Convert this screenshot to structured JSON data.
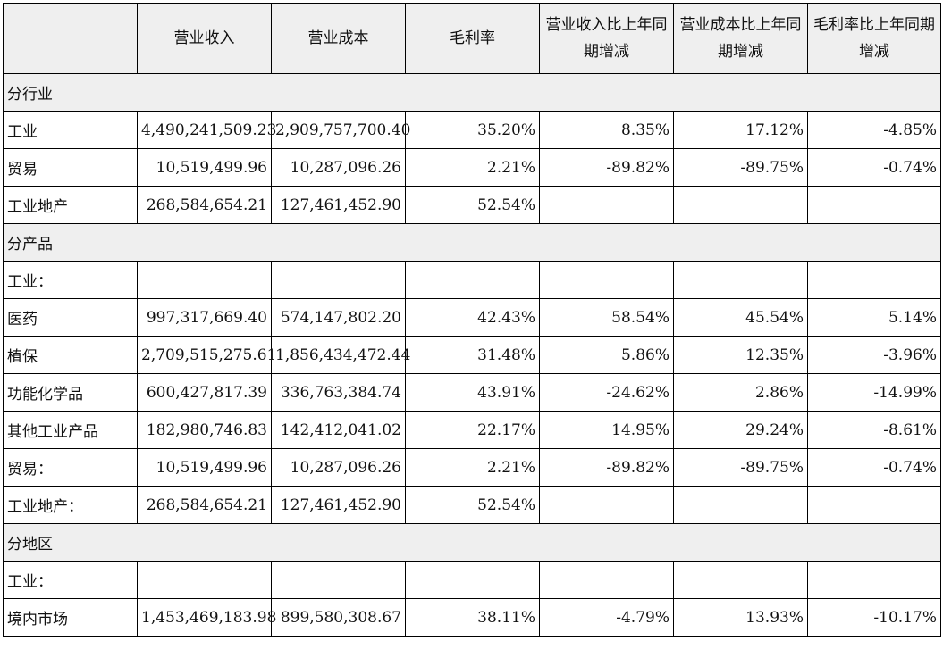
{
  "columns": [
    "",
    "营业收入",
    "营业成本",
    "毛利率",
    "营业收入比上年同期增减",
    "营业成本比上年同期增减",
    "毛利率比上年同期增减"
  ],
  "rows": [
    {
      "type": "section",
      "label": "分行业"
    },
    {
      "type": "data",
      "label": "工业",
      "values": [
        "4,490,241,509.23",
        "2,909,757,700.40",
        "35.20%",
        "8.35%",
        "17.12%",
        "-4.85%"
      ]
    },
    {
      "type": "data",
      "label": "贸易",
      "values": [
        "10,519,499.96",
        "10,287,096.26",
        "2.21%",
        "-89.82%",
        "-89.75%",
        "-0.74%"
      ]
    },
    {
      "type": "data",
      "label": "工业地产",
      "values": [
        "268,584,654.21",
        "127,461,452.90",
        "52.54%",
        "",
        "",
        ""
      ]
    },
    {
      "type": "section",
      "label": "分产品"
    },
    {
      "type": "data",
      "label": "工业：",
      "values": [
        "",
        "",
        "",
        "",
        "",
        ""
      ]
    },
    {
      "type": "data",
      "label": "医药",
      "values": [
        "997,317,669.40",
        "574,147,802.20",
        "42.43%",
        "58.54%",
        "45.54%",
        "5.14%"
      ]
    },
    {
      "type": "data",
      "label": "植保",
      "values": [
        "2,709,515,275.61",
        "1,856,434,472.44",
        "31.48%",
        "5.86%",
        "12.35%",
        "-3.96%"
      ]
    },
    {
      "type": "data",
      "label": "功能化学品",
      "values": [
        "600,427,817.39",
        "336,763,384.74",
        "43.91%",
        "-24.62%",
        "2.86%",
        "-14.99%"
      ]
    },
    {
      "type": "data",
      "label": "其他工业产品",
      "values": [
        "182,980,746.83",
        "142,412,041.02",
        "22.17%",
        "14.95%",
        "29.24%",
        "-8.61%"
      ]
    },
    {
      "type": "data",
      "label": "贸易：",
      "values": [
        "10,519,499.96",
        "10,287,096.26",
        "2.21%",
        "-89.82%",
        "-89.75%",
        "-0.74%"
      ]
    },
    {
      "type": "data",
      "label": "工业地产：",
      "values": [
        "268,584,654.21",
        "127,461,452.90",
        "52.54%",
        "",
        "",
        ""
      ]
    },
    {
      "type": "section",
      "label": "分地区"
    },
    {
      "type": "data",
      "label": "工业：",
      "values": [
        "",
        "",
        "",
        "",
        "",
        ""
      ]
    },
    {
      "type": "data",
      "label": "境内市场",
      "values": [
        "1,453,469,183.98",
        "899,580,308.67",
        "38.11%",
        "-4.79%",
        "13.93%",
        "-10.17%"
      ]
    }
  ]
}
